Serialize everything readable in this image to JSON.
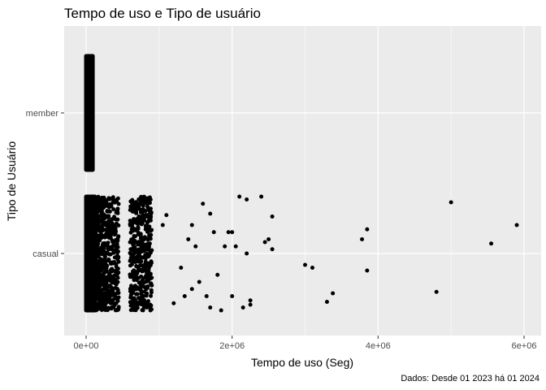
{
  "chart_data": {
    "type": "scatter",
    "title": "Tempo de uso e Tipo de usuário",
    "xlabel": "Tempo de uso (Seg)",
    "ylabel": "Tipo de Usuário",
    "caption": "Dados: Desde 01 2023 há 01 2024",
    "xlim": [
      -100000,
      6100000
    ],
    "x_ticks": [
      {
        "value": 0,
        "label": "0e+00"
      },
      {
        "value": 2000000,
        "label": "2e+06"
      },
      {
        "value": 4000000,
        "label": "4e+06"
      },
      {
        "value": 6000000,
        "label": "6e+06"
      }
    ],
    "categories": [
      "casual",
      "member"
    ],
    "grid": true,
    "legend": "none",
    "point_color": "#000000",
    "panel_color": "#ebebeb",
    "grid_color": "#ffffff",
    "series": [
      {
        "category": "member",
        "dense_ranges": [
          {
            "from": 0,
            "to": 90000
          }
        ],
        "points": []
      },
      {
        "category": "casual",
        "dense_ranges": [
          {
            "from": 0,
            "to": 120000
          },
          {
            "from": 120000,
            "to": 450000
          },
          {
            "from": 600000,
            "to": 900000
          }
        ],
        "points": [
          [
            1050000,
            0.2
          ],
          [
            1100000,
            0.27
          ],
          [
            1200000,
            -0.35
          ],
          [
            1300000,
            -0.1
          ],
          [
            1350000,
            -0.3
          ],
          [
            1400000,
            0.1
          ],
          [
            1450000,
            0.2
          ],
          [
            1450000,
            -0.25
          ],
          [
            1500000,
            0.05
          ],
          [
            1550000,
            -0.2
          ],
          [
            1600000,
            0.35
          ],
          [
            1650000,
            -0.3
          ],
          [
            1700000,
            0.28
          ],
          [
            1700000,
            -0.38
          ],
          [
            1750000,
            0.15
          ],
          [
            1800000,
            -0.15
          ],
          [
            1850000,
            -0.4
          ],
          [
            1900000,
            0.05
          ],
          [
            1950000,
            0.15
          ],
          [
            2000000,
            0.15
          ],
          [
            2000000,
            -0.3
          ],
          [
            2050000,
            0.05
          ],
          [
            2100000,
            0.4
          ],
          [
            2150000,
            -0.38
          ],
          [
            2200000,
            0.38
          ],
          [
            2200000,
            0.0
          ],
          [
            2250000,
            -0.33
          ],
          [
            2250000,
            -0.36
          ],
          [
            2400000,
            0.4
          ],
          [
            2450000,
            0.08
          ],
          [
            2500000,
            0.1
          ],
          [
            2550000,
            0.26
          ],
          [
            2550000,
            0.03
          ],
          [
            3000000,
            -0.08
          ],
          [
            3100000,
            -0.1
          ],
          [
            3300000,
            -0.34
          ],
          [
            3380000,
            -0.28
          ],
          [
            3780000,
            0.1
          ],
          [
            3850000,
            0.17
          ],
          [
            3850000,
            -0.12
          ],
          [
            4800000,
            -0.27
          ],
          [
            5000000,
            0.36
          ],
          [
            5550000,
            0.07
          ],
          [
            5900000,
            0.2
          ]
        ]
      }
    ]
  }
}
